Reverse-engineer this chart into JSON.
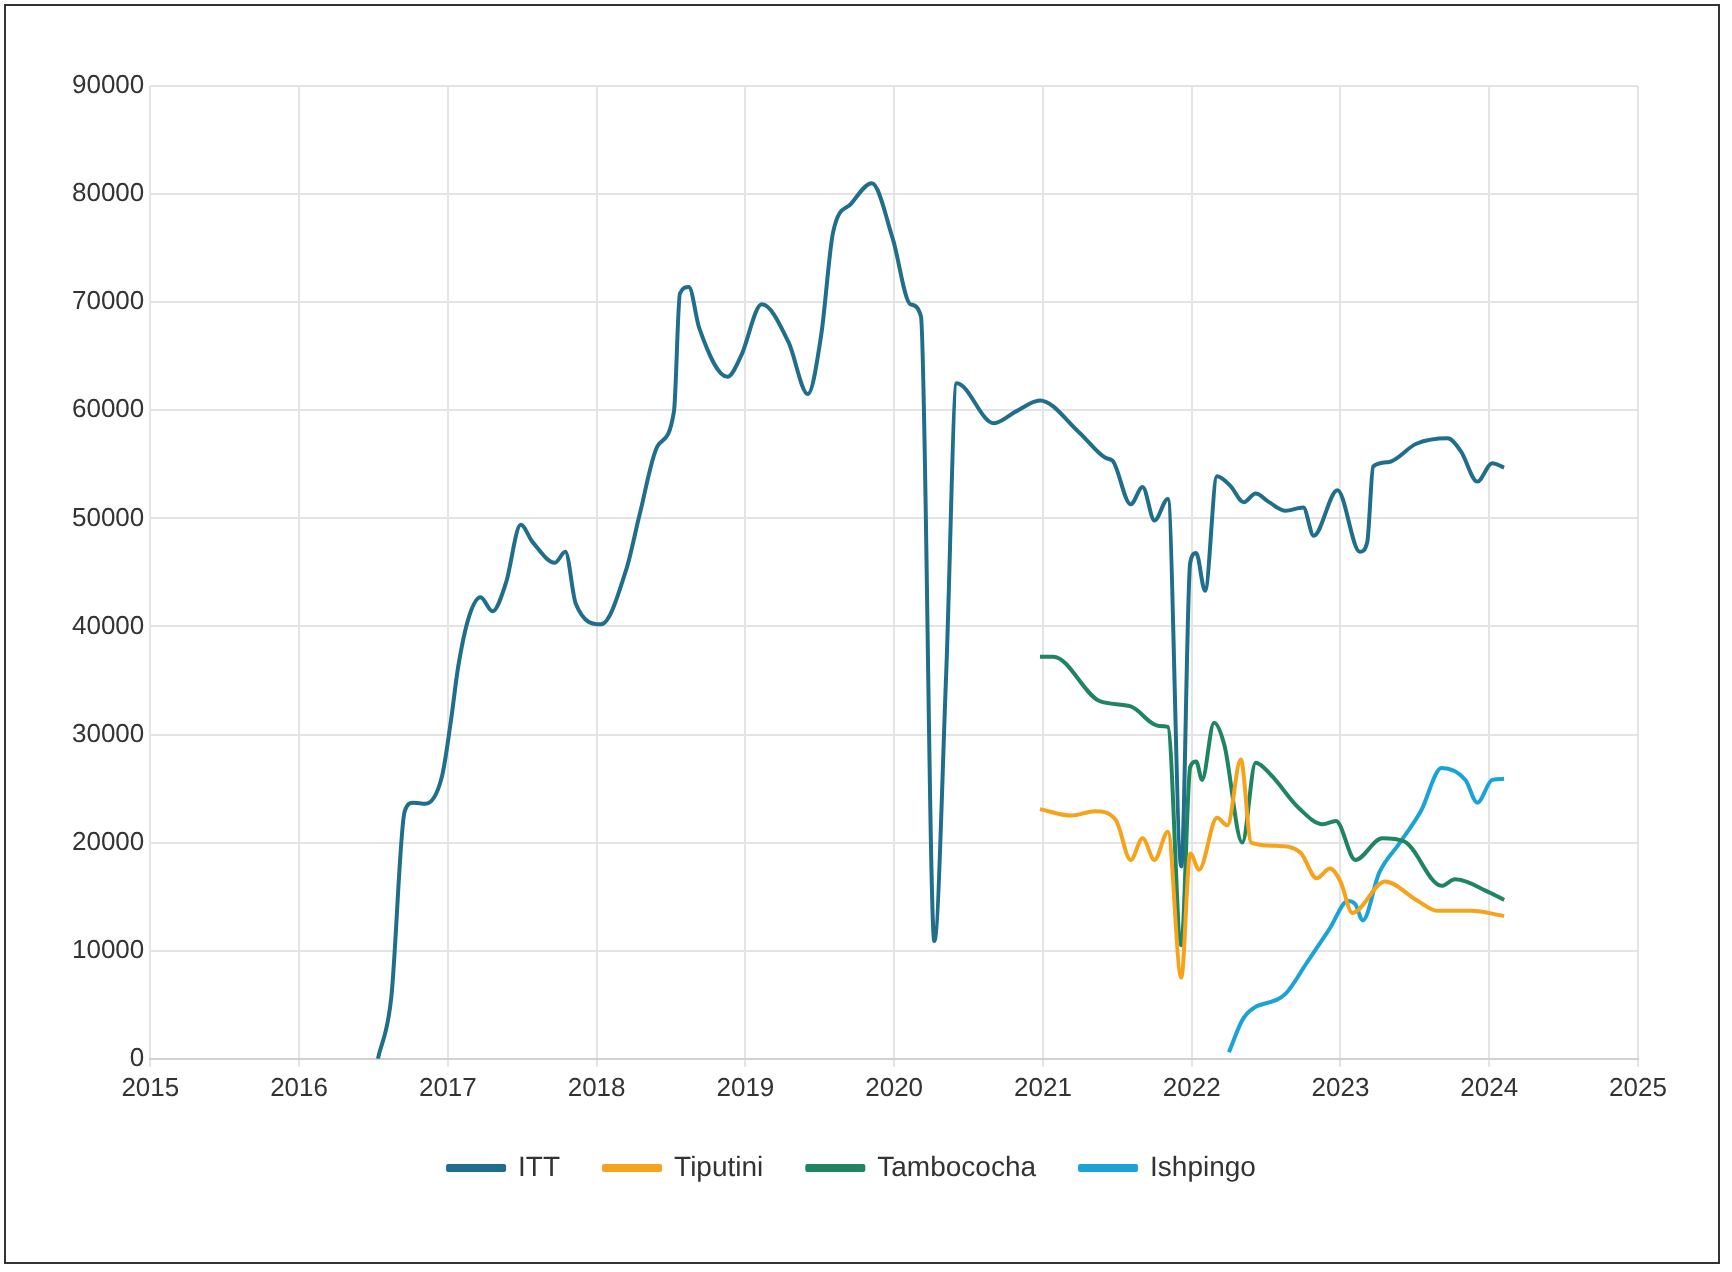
{
  "chart_data": {
    "type": "line",
    "xlim": [
      2015,
      2025
    ],
    "xticks": [
      2015,
      2016,
      2017,
      2018,
      2019,
      2020,
      2021,
      2022,
      2023,
      2024,
      2025
    ],
    "ylim": [
      0,
      90000
    ],
    "yticks": [
      0,
      10000,
      20000,
      30000,
      40000,
      50000,
      60000,
      70000,
      80000,
      90000
    ],
    "grid": true,
    "legend": "bottom",
    "marker": "none",
    "line_style": "solid",
    "series": [
      {
        "name": "ITT",
        "color": "#1f6e8c",
        "x": [
          2016.53,
          2016.62,
          2016.71,
          2016.77,
          2016.85,
          2016.96,
          2017.02,
          2017.07,
          2017.14,
          2017.22,
          2017.3,
          2017.39,
          2017.49,
          2017.57,
          2017.72,
          2017.79,
          2017.86,
          2018.03,
          2018.2,
          2018.29,
          2018.41,
          2018.52,
          2018.56,
          2018.62,
          2018.69,
          2018.88,
          2018.97,
          2019.11,
          2019.29,
          2019.42,
          2019.51,
          2019.59,
          2019.71,
          2019.85,
          2019.99,
          2020.11,
          2020.18,
          2020.27,
          2020.35,
          2020.42,
          2020.67,
          2020.82,
          2020.98,
          2021.24,
          2021.42,
          2021.47,
          2021.59,
          2021.67,
          2021.75,
          2021.84,
          2021.93,
          2021.99,
          2022.03,
          2022.09,
          2022.17,
          2022.26,
          2022.35,
          2022.43,
          2022.52,
          2022.63,
          2022.75,
          2022.82,
          2022.98,
          2023.13,
          2023.18,
          2023.22,
          2023.32,
          2023.51,
          2023.72,
          2023.81,
          2023.92,
          2024.02,
          2024.1
        ],
        "values": [
          0,
          5700,
          22900,
          23700,
          23600,
          26100,
          31200,
          36300,
          40800,
          42700,
          41400,
          44000,
          49400,
          47800,
          45900,
          46900,
          42100,
          40200,
          45300,
          50400,
          56700,
          59900,
          70800,
          71400,
          67600,
          63100,
          65000,
          69800,
          66300,
          61500,
          67000,
          76500,
          79100,
          81000,
          75900,
          69800,
          68700,
          10900,
          35700,
          62500,
          58800,
          59900,
          60900,
          58000,
          55600,
          55300,
          51300,
          52900,
          49800,
          51800,
          17800,
          45900,
          46800,
          43300,
          53900,
          53000,
          51500,
          52300,
          51500,
          50700,
          51000,
          48400,
          52600,
          46900,
          47800,
          54800,
          55200,
          56900,
          57400,
          56200,
          53400,
          55100,
          54700
        ]
      },
      {
        "name": "Tiputini",
        "color": "#f7a21b",
        "x": [
          2020.98,
          2021.19,
          2021.35,
          2021.49,
          2021.59,
          2021.67,
          2021.75,
          2021.84,
          2021.93,
          2021.99,
          2022.05,
          2022.17,
          2022.24,
          2022.33,
          2022.4,
          2022.57,
          2022.73,
          2022.84,
          2022.93,
          2023.0,
          2023.08,
          2023.3,
          2023.51,
          2023.65,
          2023.88,
          2024.1
        ],
        "values": [
          23100,
          22500,
          22900,
          22100,
          18400,
          20400,
          18400,
          21000,
          7500,
          19000,
          17500,
          22300,
          21600,
          27700,
          20000,
          19700,
          19100,
          16700,
          17600,
          16400,
          13500,
          16400,
          14700,
          13700,
          13700,
          13200
        ]
      },
      {
        "name": "Tambococha",
        "color": "#1e8560",
        "x": [
          2020.98,
          2021.07,
          2021.38,
          2021.59,
          2021.78,
          2021.84,
          2021.93,
          2021.99,
          2022.03,
          2022.07,
          2022.15,
          2022.22,
          2022.34,
          2022.43,
          2022.53,
          2022.72,
          2022.88,
          2022.97,
          2023.1,
          2023.28,
          2023.43,
          2023.68,
          2023.77,
          2024.0,
          2024.1
        ],
        "values": [
          37200,
          37200,
          33100,
          32600,
          30800,
          30700,
          10500,
          27000,
          27500,
          25800,
          31100,
          29000,
          20000,
          27400,
          26300,
          23200,
          21700,
          22000,
          18400,
          20400,
          20100,
          16000,
          16600,
          15400,
          14700
        ]
      },
      {
        "name": "Ishpingo",
        "color": "#1aa3d6",
        "x": [
          2022.25,
          2022.35,
          2022.63,
          2022.77,
          2022.93,
          2023.05,
          2023.1,
          2023.15,
          2023.26,
          2023.4,
          2023.54,
          2023.68,
          2023.84,
          2023.92,
          2024.02,
          2024.1
        ],
        "values": [
          600,
          3800,
          6000,
          8800,
          12100,
          14600,
          14300,
          12800,
          17200,
          20000,
          22900,
          26900,
          25800,
          23700,
          25800,
          25900
        ]
      }
    ]
  }
}
